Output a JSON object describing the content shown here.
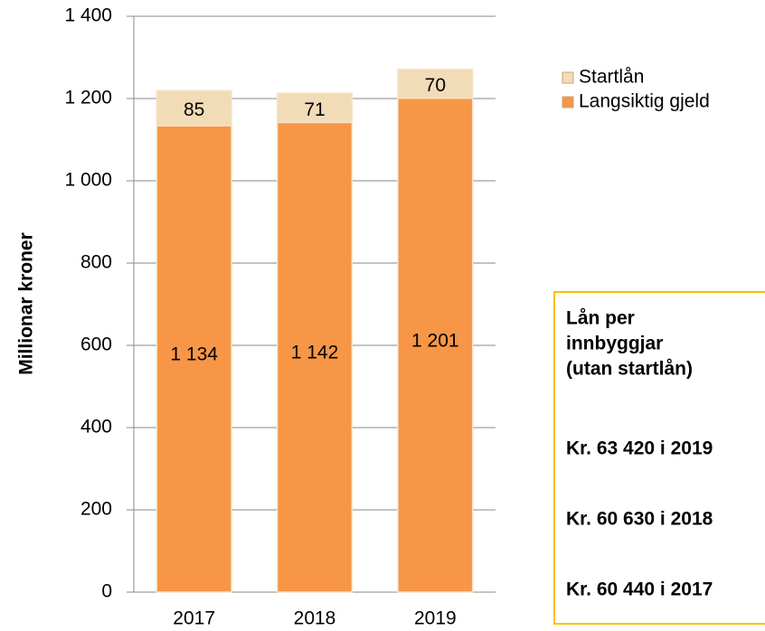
{
  "chart_data": {
    "type": "stacked_bar",
    "y_label": "Millionar kroner",
    "categories": [
      "2017",
      "2018",
      "2019"
    ],
    "series": [
      {
        "name": "Langsiktig gjeld",
        "color": "#f79646",
        "values": [
          1134,
          1142,
          1201
        ],
        "value_labels": [
          "1 134",
          "1 142",
          "1 201"
        ]
      },
      {
        "name": "Startlån",
        "color": "#f2dcb8",
        "values": [
          85,
          71,
          70
        ]
      }
    ],
    "ylim": [
      0,
      1400
    ],
    "yticks": [
      0,
      200,
      400,
      600,
      800,
      {
        "value": 1000,
        "label": "1 000"
      },
      {
        "value": 1200,
        "label": "1 200"
      },
      {
        "value": 1400,
        "label": "1 400"
      }
    ],
    "grid": true,
    "legend": "right",
    "annotation": {
      "title": [
        "Lån per",
        "innbyggjar",
        "(utan startlån)"
      ],
      "lines": [
        "Kr. 63 420 i 2019",
        "Kr. 60 630 i 2018",
        "Kr. 60 440 i 2017"
      ],
      "color": "#e46c0a",
      "border": "#ffc000"
    }
  }
}
